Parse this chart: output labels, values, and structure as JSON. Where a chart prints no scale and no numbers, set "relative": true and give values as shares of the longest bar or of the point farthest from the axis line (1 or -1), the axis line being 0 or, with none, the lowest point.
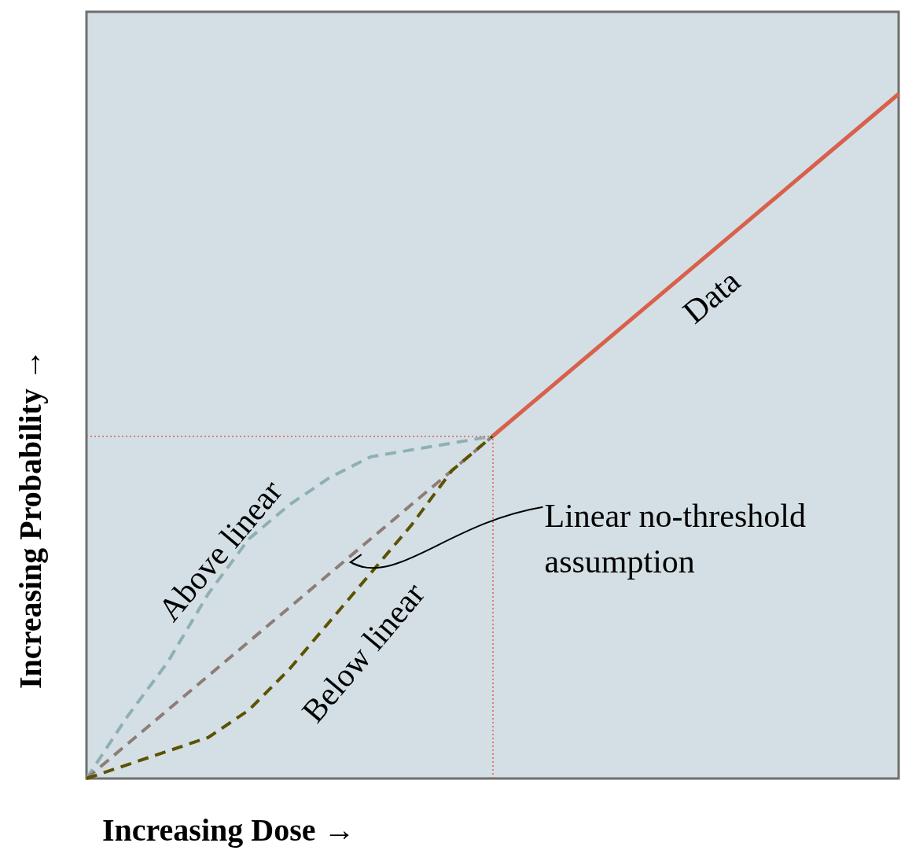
{
  "chart_data": {
    "type": "line",
    "relative": true,
    "xlabel": "Increasing Dose →",
    "ylabel": "Increasing Probability →",
    "categories": [
      null,
      null,
      null,
      null,
      null,
      null,
      null,
      null,
      null,
      null,
      null,
      null,
      null,
      null,
      null,
      null,
      null,
      null,
      null,
      null,
      null
    ],
    "series": [
      {
        "name": "Data",
        "color": "#d9604a",
        "line_style": "solid",
        "values": [
          null,
          null,
          null,
          null,
          null,
          null,
          null,
          null,
          null,
          null,
          0.5,
          0.55,
          0.6,
          0.65,
          0.7,
          0.75,
          0.8,
          0.85,
          0.9,
          0.95,
          1
        ]
      },
      {
        "name": "Above linear",
        "color": "#8fb0b0",
        "line_style": "dashed",
        "values": [
          0,
          0.09,
          0.17,
          0.27,
          0.35,
          0.4,
          0.44,
          0.47,
          0.48,
          0.49,
          0.5,
          null,
          null,
          null,
          null,
          null,
          null,
          null,
          null,
          null,
          null
        ]
      },
      {
        "name": "Linear no-threshold assumption",
        "color": "#8e7c76",
        "line_style": "dashed",
        "values": [
          0,
          0.05,
          0.1,
          0.15,
          0.2,
          0.25,
          0.3,
          0.35,
          0.4,
          0.45,
          0.5,
          null,
          null,
          null,
          null,
          null,
          null,
          null,
          null,
          null,
          null
        ]
      },
      {
        "name": "Below linear",
        "color": "#5c5200",
        "line_style": "dashed",
        "values": [
          0,
          0.02,
          0.04,
          0.06,
          0.1,
          0.16,
          0.23,
          0.3,
          0.37,
          0.45,
          0.5,
          null,
          null,
          null,
          null,
          null,
          null,
          null,
          null,
          null,
          null
        ]
      }
    ],
    "ref_lines": [
      {
        "axis": "y",
        "value": 0.5,
        "color": "#e06050",
        "line_style": "dotted"
      }
    ],
    "marker": "none"
  }
}
